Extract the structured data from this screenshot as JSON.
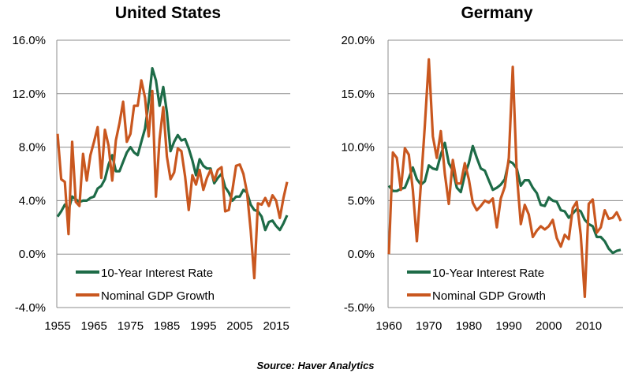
{
  "colors": {
    "interest": "#1d6b47",
    "gdp": "#c9571f",
    "grid": "#8c8c8c"
  },
  "source": "Source: Haver Analytics",
  "chart_data": [
    {
      "type": "line",
      "title": "United States",
      "ylim": [
        -4,
        16
      ],
      "yticks": [
        -4,
        0,
        4,
        8,
        12,
        16
      ],
      "ytick_labels": [
        "-4.0%",
        "0.0%",
        "4.0%",
        "8.0%",
        "12.0%",
        "16.0%"
      ],
      "xlim": [
        1955,
        2018
      ],
      "xticks": [
        1955,
        1965,
        1975,
        1985,
        1995,
        2005,
        2015
      ],
      "grid": "horizontal",
      "legend": "bottom-left",
      "x": [
        1955,
        1956,
        1957,
        1958,
        1959,
        1960,
        1961,
        1962,
        1963,
        1964,
        1965,
        1966,
        1967,
        1968,
        1969,
        1970,
        1971,
        1972,
        1973,
        1974,
        1975,
        1976,
        1977,
        1978,
        1979,
        1980,
        1981,
        1982,
        1983,
        1984,
        1985,
        1986,
        1987,
        1988,
        1989,
        1990,
        1991,
        1992,
        1993,
        1994,
        1995,
        1996,
        1997,
        1998,
        1999,
        2000,
        2001,
        2002,
        2003,
        2004,
        2005,
        2006,
        2007,
        2008,
        2009,
        2010,
        2011,
        2012,
        2013,
        2014,
        2015,
        2016,
        2017,
        2018
      ],
      "series": [
        {
          "name": "10-Year Interest Rate",
          "values": [
            2.8,
            3.2,
            3.7,
            3.3,
            4.3,
            4.1,
            3.9,
            4.0,
            4.0,
            4.2,
            4.3,
            4.9,
            5.1,
            5.6,
            6.7,
            7.4,
            6.2,
            6.2,
            6.9,
            7.6,
            8.0,
            7.6,
            7.4,
            8.4,
            9.4,
            11.4,
            13.9,
            13.0,
            11.1,
            12.5,
            10.6,
            7.7,
            8.4,
            8.9,
            8.5,
            8.6,
            7.9,
            7.0,
            5.9,
            7.1,
            6.6,
            6.4,
            6.4,
            5.3,
            5.7,
            6.0,
            5.0,
            4.6,
            4.0,
            4.3,
            4.3,
            4.8,
            4.6,
            3.7,
            3.3,
            3.2,
            2.8,
            1.8,
            2.4,
            2.5,
            2.1,
            1.8,
            2.3,
            2.9
          ]
        },
        {
          "name": "Nominal GDP Growth",
          "values": [
            9.0,
            5.6,
            5.4,
            1.5,
            8.4,
            3.9,
            3.6,
            7.5,
            5.5,
            7.4,
            8.4,
            9.5,
            5.7,
            9.3,
            8.1,
            5.5,
            8.5,
            9.8,
            11.4,
            8.4,
            9.0,
            11.1,
            11.1,
            13.0,
            11.7,
            8.8,
            12.2,
            4.3,
            8.6,
            11.0,
            7.3,
            5.6,
            6.1,
            7.9,
            7.7,
            5.8,
            3.3,
            5.9,
            5.2,
            6.3,
            4.8,
            5.7,
            6.3,
            5.5,
            6.3,
            6.5,
            3.2,
            3.3,
            4.8,
            6.6,
            6.7,
            6.0,
            4.6,
            1.8,
            -1.8,
            3.8,
            3.7,
            4.2,
            3.6,
            4.4,
            4.0,
            2.7,
            4.2,
            5.4
          ]
        }
      ]
    },
    {
      "type": "line",
      "title": "Germany",
      "ylim": [
        -5,
        20
      ],
      "yticks": [
        -5,
        0,
        5,
        10,
        15,
        20
      ],
      "ytick_labels": [
        "-5.0%",
        "0.0%",
        "5.0%",
        "10.0%",
        "15.0%",
        "20.0%"
      ],
      "xlim": [
        1960,
        2018
      ],
      "xticks": [
        1960,
        1970,
        1980,
        1990,
        2000,
        2010
      ],
      "grid": "horizontal",
      "legend": "bottom-left",
      "x": [
        1960,
        1961,
        1962,
        1963,
        1964,
        1965,
        1966,
        1967,
        1968,
        1969,
        1970,
        1971,
        1972,
        1973,
        1974,
        1975,
        1976,
        1977,
        1978,
        1979,
        1980,
        1981,
        1982,
        1983,
        1984,
        1985,
        1986,
        1987,
        1988,
        1989,
        1990,
        1991,
        1992,
        1993,
        1994,
        1995,
        1996,
        1997,
        1998,
        1999,
        2000,
        2001,
        2002,
        2003,
        2004,
        2005,
        2006,
        2007,
        2008,
        2009,
        2010,
        2011,
        2012,
        2013,
        2014,
        2015,
        2016,
        2017,
        2018
      ],
      "series": [
        {
          "name": "10-Year Interest Rate",
          "values": [
            6.4,
            5.9,
            5.9,
            6.1,
            6.2,
            7.1,
            8.1,
            7.0,
            6.5,
            6.8,
            8.3,
            8.0,
            7.9,
            9.3,
            10.4,
            8.5,
            7.8,
            6.2,
            5.8,
            7.4,
            8.5,
            10.1,
            9.0,
            8.0,
            7.8,
            6.9,
            6.0,
            6.2,
            6.5,
            7.0,
            8.7,
            8.5,
            8.0,
            6.4,
            6.9,
            6.9,
            6.2,
            5.7,
            4.6,
            4.5,
            5.3,
            5.0,
            4.9,
            4.1,
            4.0,
            3.4,
            3.8,
            4.2,
            4.0,
            3.2,
            2.8,
            2.6,
            1.6,
            1.6,
            1.2,
            0.5,
            0.1,
            0.3,
            0.4
          ]
        },
        {
          "name": "Nominal GDP Growth",
          "values": [
            0.0,
            9.5,
            9.0,
            6.0,
            9.9,
            9.3,
            6.0,
            1.2,
            6.5,
            12.0,
            18.2,
            11.0,
            9.0,
            11.5,
            7.5,
            4.7,
            8.8,
            6.6,
            6.6,
            8.5,
            7.0,
            4.8,
            4.1,
            4.5,
            5.0,
            4.8,
            5.2,
            2.5,
            5.2,
            6.3,
            9.0,
            17.5,
            7.5,
            2.8,
            4.6,
            3.7,
            1.6,
            2.2,
            2.6,
            2.3,
            2.6,
            3.2,
            1.5,
            0.7,
            1.8,
            1.4,
            4.3,
            4.9,
            1.8,
            -4.0,
            4.7,
            5.1,
            2.0,
            2.5,
            4.1,
            3.3,
            3.4,
            3.9,
            3.1
          ]
        }
      ]
    }
  ]
}
